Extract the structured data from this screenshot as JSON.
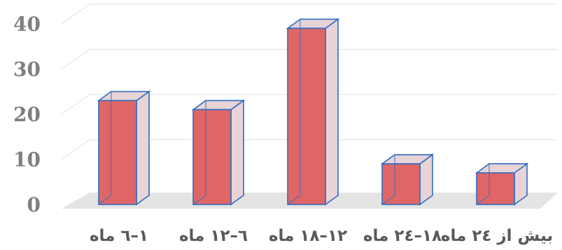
{
  "chart_data": {
    "type": "bar",
    "style": "3d-column",
    "categories": [
      "بیش از ۲٤ ماه",
      "۱۸–۲٤ ماه",
      "۱۲–۱۸ ماه",
      "٦–۱۲ ماه",
      "۱–٦ ماه"
    ],
    "values": [
      7,
      9,
      39,
      21,
      23
    ],
    "yticks": [
      "0",
      "10",
      "20",
      "30",
      "40"
    ],
    "ylim": [
      0,
      40
    ],
    "title": "",
    "xlabel": "",
    "ylabel": "",
    "grid": true,
    "legend": "none",
    "colors": {
      "bar_front": "#e06666",
      "bar_edge": "#2f6fc4",
      "bar_side": "#e8d3d7",
      "bar_top": "#e8d3d7",
      "floor": "#e4e4e4",
      "gridline": "#e6e6e6",
      "tick_text_y": "#7f7f7f",
      "tick_text_x": "#595959"
    }
  }
}
